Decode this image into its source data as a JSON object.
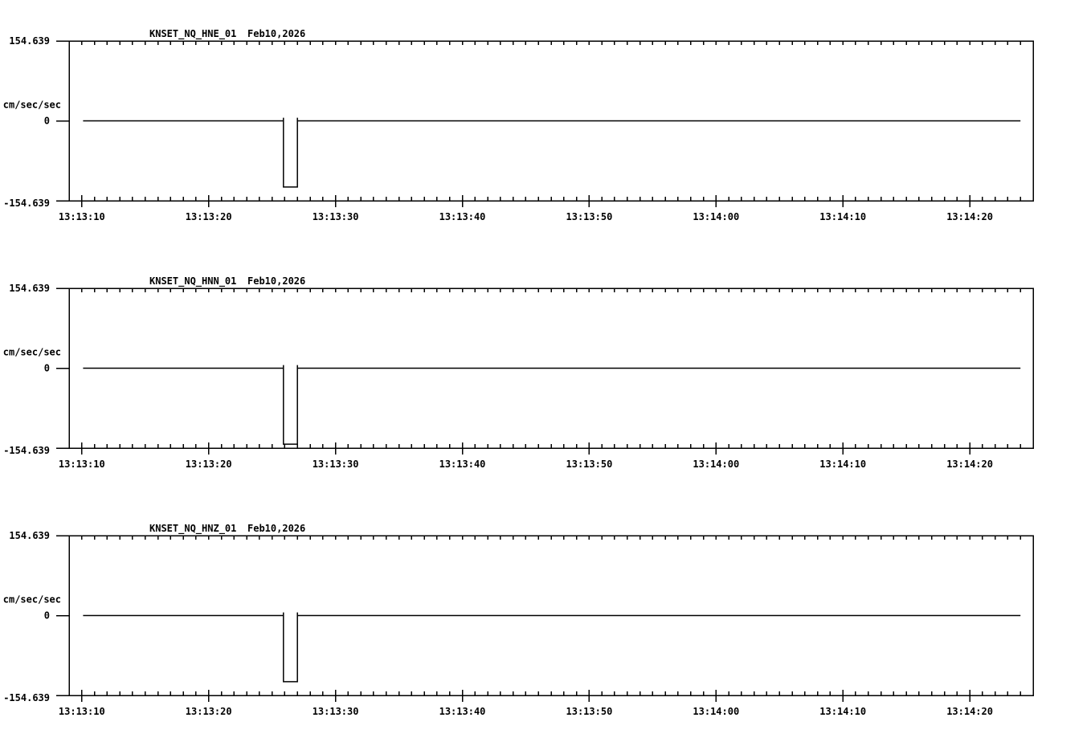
{
  "page": {
    "background_color": "#ffffff",
    "line_color": "#000000"
  },
  "chart_data": [
    {
      "type": "line",
      "title": "KNSET_NQ_HNE_01",
      "date": "Feb10,2026",
      "ylabel": "cm/sec/sec",
      "ytick_labels": [
        "154.639",
        "0",
        "-154.639"
      ],
      "yticks": [
        154.639,
        0,
        -154.639
      ],
      "ylim": [
        -154.639,
        154.639
      ],
      "x_axis": {
        "start": "13:13:09",
        "end": "13:14:25",
        "major_tick_labels": [
          "13:13:10",
          "13:13:20",
          "13:13:30",
          "13:13:40",
          "13:13:50",
          "13:14:00",
          "13:14:10",
          "13:14:20"
        ],
        "major_interval_s": 10,
        "minor_interval_s": 1
      },
      "series": {
        "name": "acceleration-trace",
        "units": "cm/sec/sec",
        "baseline": 0,
        "trace_start": "13:13:10.1",
        "trace_end": "13:14:24.0",
        "pulse": {
          "start": "13:13:25.9",
          "end": "13:13:27.0",
          "min": -128,
          "edge_overshoot": 6
        }
      }
    },
    {
      "type": "line",
      "title": "KNSET_NQ_HNN_01",
      "date": "Feb10,2026",
      "ylabel": "cm/sec/sec",
      "ytick_labels": [
        "154.639",
        "0",
        "-154.639"
      ],
      "yticks": [
        154.639,
        0,
        -154.639
      ],
      "ylim": [
        -154.639,
        154.639
      ],
      "x_axis": {
        "start": "13:13:09",
        "end": "13:14:25",
        "major_tick_labels": [
          "13:13:10",
          "13:13:20",
          "13:13:30",
          "13:13:40",
          "13:13:50",
          "13:14:00",
          "13:14:10",
          "13:14:20"
        ],
        "major_interval_s": 10,
        "minor_interval_s": 1
      },
      "series": {
        "name": "acceleration-trace",
        "units": "cm/sec/sec",
        "baseline": 0,
        "trace_start": "13:13:10.1",
        "trace_end": "13:14:24.0",
        "pulse": {
          "start": "13:13:25.9",
          "end": "13:13:27.0",
          "min": -147,
          "edge_overshoot": 6
        }
      }
    },
    {
      "type": "line",
      "title": "KNSET_NQ_HNZ_01",
      "date": "Feb10,2026",
      "ylabel": "cm/sec/sec",
      "ytick_labels": [
        "154.639",
        "0",
        "-154.639"
      ],
      "yticks": [
        154.639,
        0,
        -154.639
      ],
      "ylim": [
        -154.639,
        154.639
      ],
      "x_axis": {
        "start": "13:13:09",
        "end": "13:14:25",
        "major_tick_labels": [
          "13:13:10",
          "13:13:20",
          "13:13:30",
          "13:13:40",
          "13:13:50",
          "13:14:00",
          "13:14:10",
          "13:14:20"
        ],
        "major_interval_s": 10,
        "minor_interval_s": 1
      },
      "series": {
        "name": "acceleration-trace",
        "units": "cm/sec/sec",
        "baseline": 0,
        "trace_start": "13:13:10.1",
        "trace_end": "13:14:24.0",
        "pulse": {
          "start": "13:13:25.9",
          "end": "13:13:27.0",
          "min": -128,
          "edge_overshoot": 6
        }
      }
    }
  ]
}
